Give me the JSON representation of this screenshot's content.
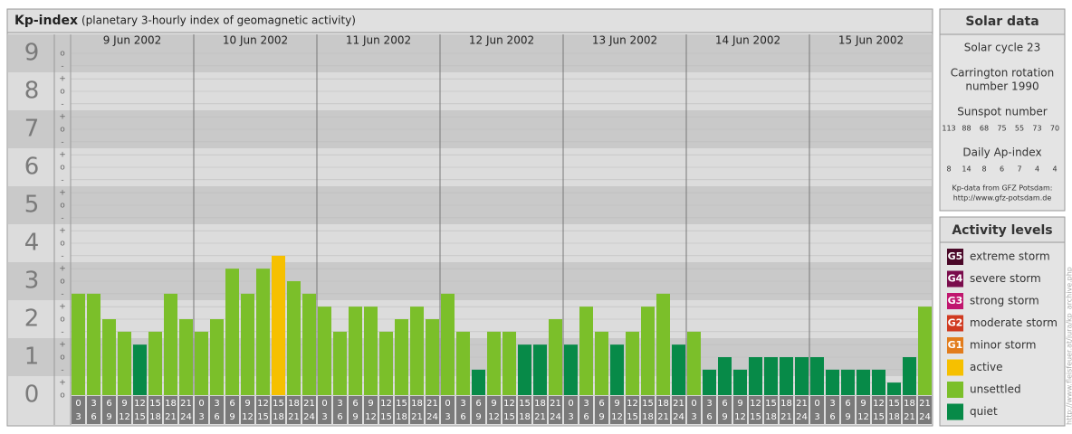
{
  "chart_data": {
    "type": "bar",
    "title": "Kp-index",
    "subtitle": "(planetary 3-hourly index of geomagnetic activity)",
    "hours_from": [
      0,
      3,
      6,
      9,
      12,
      15,
      18,
      21
    ],
    "hours_to": [
      3,
      6,
      9,
      12,
      15,
      18,
      21,
      24
    ],
    "days": [
      {
        "label": "9 Jun 2002",
        "values": [
          2.67,
          2.67,
          2.0,
          1.67,
          1.33,
          1.67,
          2.67,
          2.0
        ],
        "colors": [
          "#7bbf2a",
          "#7bbf2a",
          "#7bbf2a",
          "#7bbf2a",
          "#078a48",
          "#7bbf2a",
          "#7bbf2a",
          "#7bbf2a"
        ]
      },
      {
        "label": "10 Jun 2002",
        "values": [
          1.67,
          2.0,
          3.33,
          2.67,
          3.33,
          3.67,
          3.0,
          2.67
        ],
        "colors": [
          "#7bbf2a",
          "#7bbf2a",
          "#7bbf2a",
          "#7bbf2a",
          "#7bbf2a",
          "#f6c000",
          "#7bbf2a",
          "#7bbf2a"
        ]
      },
      {
        "label": "11 Jun 2002",
        "values": [
          2.33,
          1.67,
          2.33,
          2.33,
          1.67,
          2.0,
          2.33,
          2.0
        ],
        "colors": [
          "#7bbf2a",
          "#7bbf2a",
          "#7bbf2a",
          "#7bbf2a",
          "#7bbf2a",
          "#7bbf2a",
          "#7bbf2a",
          "#7bbf2a"
        ]
      },
      {
        "label": "12 Jun 2002",
        "values": [
          2.67,
          1.67,
          0.67,
          1.67,
          1.67,
          1.33,
          1.33,
          2.0
        ],
        "colors": [
          "#7bbf2a",
          "#7bbf2a",
          "#078a48",
          "#7bbf2a",
          "#7bbf2a",
          "#078a48",
          "#078a48",
          "#7bbf2a"
        ]
      },
      {
        "label": "13 Jun 2002",
        "values": [
          1.33,
          2.33,
          1.67,
          1.33,
          1.67,
          2.33,
          2.67,
          1.33
        ],
        "colors": [
          "#078a48",
          "#7bbf2a",
          "#7bbf2a",
          "#078a48",
          "#7bbf2a",
          "#7bbf2a",
          "#7bbf2a",
          "#078a48"
        ]
      },
      {
        "label": "14 Jun 2002",
        "values": [
          1.67,
          0.67,
          1.0,
          0.67,
          1.0,
          1.0,
          1.0,
          1.0
        ],
        "colors": [
          "#7bbf2a",
          "#078a48",
          "#078a48",
          "#078a48",
          "#078a48",
          "#078a48",
          "#078a48",
          "#078a48"
        ]
      },
      {
        "label": "15 Jun 2002",
        "values": [
          1.0,
          0.67,
          0.67,
          0.67,
          0.67,
          0.33,
          1.0,
          2.33
        ],
        "colors": [
          "#078a48",
          "#078a48",
          "#078a48",
          "#078a48",
          "#078a48",
          "#078a48",
          "#078a48",
          "#7bbf2a"
        ]
      }
    ],
    "ylim": [
      0,
      9.5
    ],
    "yticks": [
      0,
      1,
      2,
      3,
      4,
      5,
      6,
      7,
      8,
      9
    ],
    "minor_ticks": [
      {
        "value": 0,
        "label": "o"
      },
      {
        "value": 0.33,
        "label": "+"
      },
      {
        "value": 0.67,
        "label": "-"
      },
      {
        "value": 1,
        "label": "o"
      },
      {
        "value": 1.33,
        "label": "+"
      },
      {
        "value": 1.67,
        "label": "-"
      },
      {
        "value": 2,
        "label": "o"
      },
      {
        "value": 2.33,
        "label": "+"
      },
      {
        "value": 2.67,
        "label": "-"
      },
      {
        "value": 3,
        "label": "o"
      },
      {
        "value": 3.33,
        "label": "+"
      },
      {
        "value": 3.67,
        "label": "-"
      },
      {
        "value": 4,
        "label": "o"
      },
      {
        "value": 4.33,
        "label": "+"
      },
      {
        "value": 4.67,
        "label": "-"
      },
      {
        "value": 5,
        "label": "o"
      },
      {
        "value": 5.33,
        "label": "+"
      },
      {
        "value": 5.67,
        "label": "-"
      },
      {
        "value": 6,
        "label": "o"
      },
      {
        "value": 6.33,
        "label": "+"
      },
      {
        "value": 6.67,
        "label": "-"
      },
      {
        "value": 7,
        "label": "o"
      },
      {
        "value": 7.33,
        "label": "+"
      },
      {
        "value": 7.67,
        "label": "-"
      },
      {
        "value": 8,
        "label": "o"
      },
      {
        "value": 8.33,
        "label": "+"
      },
      {
        "value": 8.67,
        "label": "-"
      },
      {
        "value": 9,
        "label": "o"
      }
    ],
    "band_colors": [
      "#dcdcdc",
      "#c9c9c9"
    ],
    "grid": true
  },
  "solar_data": {
    "title": "Solar data",
    "cycle": "Solar cycle 23",
    "carrington": [
      "Carrington rotation",
      "number 1990"
    ],
    "sunspot_title": "Sunspot number",
    "sunspot_numbers": [
      113,
      88,
      68,
      75,
      55,
      73,
      70
    ],
    "ap_title": "Daily Ap-index",
    "ap_values": [
      8,
      14,
      8,
      6,
      7,
      4,
      4
    ],
    "source": [
      "Kp-data from GFZ Potsdam:",
      "http://www.gfz-potsdam.de"
    ]
  },
  "activity_levels": {
    "title": "Activity levels",
    "items": [
      {
        "badge": "G5",
        "label": "extreme storm",
        "color": "#4a0828"
      },
      {
        "badge": "G4",
        "label": "severe storm",
        "color": "#7a0c4c"
      },
      {
        "badge": "G3",
        "label": "strong storm",
        "color": "#c0166e"
      },
      {
        "badge": "G2",
        "label": "moderate storm",
        "color": "#d03a20"
      },
      {
        "badge": "G1",
        "label": "minor storm",
        "color": "#e27c1c"
      },
      {
        "label": "active",
        "color": "#f6c000"
      },
      {
        "label": "unsettled",
        "color": "#7bbf2a"
      },
      {
        "label": "quiet",
        "color": "#078a48"
      }
    ]
  },
  "watermark": "http://www.fleisfeuer.at/jura/kp_archive.php"
}
